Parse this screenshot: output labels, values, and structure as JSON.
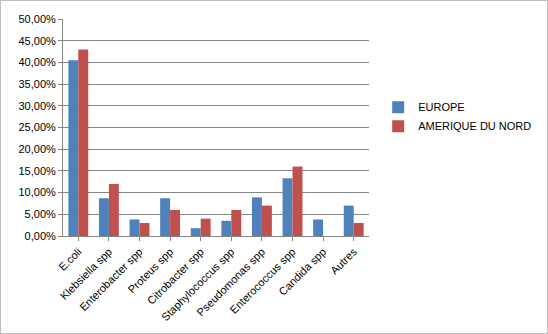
{
  "chart_data": {
    "type": "bar",
    "categories": [
      "E.coli",
      "Klebsiella spp",
      "Enterobacter spp",
      "Proteus spp",
      "Citrobacter spp",
      "Staphylococcus spp",
      "Pseudomonas spp",
      "Enterococcus spp",
      "Candida spp",
      "Autres"
    ],
    "series": [
      {
        "name": "EUROPE",
        "color": "#4f81bd",
        "values": [
          40.5,
          8.7,
          3.8,
          8.7,
          1.8,
          3.5,
          8.9,
          13.3,
          3.8,
          7.0
        ]
      },
      {
        "name": "AMERIQUE DU NORD",
        "color": "#c0504d",
        "values": [
          43.0,
          12.0,
          3.0,
          6.0,
          4.0,
          6.0,
          7.0,
          16.0,
          0.0,
          3.0
        ]
      }
    ],
    "ylim": [
      0,
      50
    ],
    "yticks": [
      {
        "value": 0,
        "label": "0,00%"
      },
      {
        "value": 5,
        "label": "5,00%"
      },
      {
        "value": 10,
        "label": "10,00%"
      },
      {
        "value": 15,
        "label": "15,00%"
      },
      {
        "value": 20,
        "label": "20,00%"
      },
      {
        "value": 25,
        "label": "25,00%"
      },
      {
        "value": 30,
        "label": "30,00%"
      },
      {
        "value": 35,
        "label": "35,00%"
      },
      {
        "value": 40,
        "label": "40,00%"
      },
      {
        "value": 45,
        "label": "45,00%"
      },
      {
        "value": 50,
        "label": "50,00%"
      }
    ],
    "grid": true,
    "legend": "right"
  }
}
